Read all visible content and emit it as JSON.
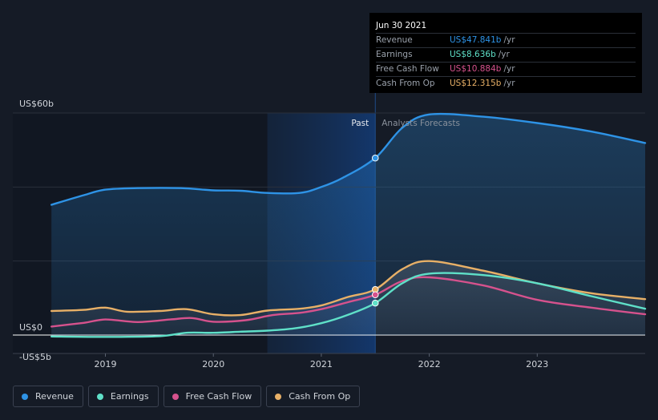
{
  "tooltip": {
    "date": "Jun 30 2021",
    "rows": [
      {
        "label": "Revenue",
        "value": "US$47.841b",
        "unit": "/yr",
        "color": "#2e93e6"
      },
      {
        "label": "Earnings",
        "value": "US$8.636b",
        "unit": "/yr",
        "color": "#5fe0c8"
      },
      {
        "label": "Free Cash Flow",
        "value": "US$10.884b",
        "unit": "/yr",
        "color": "#d6528d"
      },
      {
        "label": "Cash From Op",
        "value": "US$12.315b",
        "unit": "/yr",
        "color": "#e8b067"
      }
    ]
  },
  "legend": [
    {
      "label": "Revenue",
      "color": "#2e93e6"
    },
    {
      "label": "Earnings",
      "color": "#5fe0c8"
    },
    {
      "label": "Free Cash Flow",
      "color": "#d6528d"
    },
    {
      "label": "Cash From Op",
      "color": "#e8b067"
    }
  ],
  "chart_data": {
    "type": "line",
    "ylim": [
      -5,
      60
    ],
    "xlim": [
      2018.38,
      2024.0
    ],
    "y_tick_labels": [
      {
        "value": 60,
        "label": "US$60b"
      },
      {
        "value": 0,
        "label": "US$0"
      },
      {
        "value": -5,
        "label": "-US$5b"
      }
    ],
    "x_ticks": [
      2019,
      2020,
      2021,
      2022,
      2023
    ],
    "x_tick_labels": [
      "2019",
      "2020",
      "2021",
      "2022",
      "2023"
    ],
    "past_label": "Past",
    "forecast_label": "Analysts Forecasts",
    "past_end": 2021.5,
    "highlight_start": 2020.5,
    "series": [
      {
        "name": "Revenue",
        "color": "#2e93e6",
        "points": [
          [
            2018.5,
            35.2
          ],
          [
            2018.8,
            37.8
          ],
          [
            2019.0,
            39.3
          ],
          [
            2019.3,
            39.7
          ],
          [
            2019.7,
            39.7
          ],
          [
            2020.0,
            39.1
          ],
          [
            2020.25,
            39.0
          ],
          [
            2020.5,
            38.4
          ],
          [
            2020.8,
            38.4
          ],
          [
            2021.0,
            40.0
          ],
          [
            2021.2,
            42.5
          ],
          [
            2021.5,
            47.841
          ],
          [
            2021.75,
            56.0
          ],
          [
            2022.0,
            59.6
          ],
          [
            2022.5,
            59.0
          ],
          [
            2023.0,
            57.3
          ],
          [
            2023.5,
            55.0
          ],
          [
            2024.0,
            51.9
          ]
        ]
      },
      {
        "name": "Earnings",
        "color": "#5fe0c8",
        "points": [
          [
            2018.5,
            -0.4
          ],
          [
            2019.0,
            -0.5
          ],
          [
            2019.5,
            -0.3
          ],
          [
            2019.75,
            0.6
          ],
          [
            2020.0,
            0.6
          ],
          [
            2020.25,
            0.9
          ],
          [
            2020.5,
            1.2
          ],
          [
            2020.75,
            1.8
          ],
          [
            2021.0,
            3.2
          ],
          [
            2021.25,
            5.5
          ],
          [
            2021.5,
            8.636
          ],
          [
            2021.75,
            14.0
          ],
          [
            2022.0,
            16.6
          ],
          [
            2022.5,
            16.2
          ],
          [
            2023.0,
            14.0
          ],
          [
            2023.5,
            10.5
          ],
          [
            2024.0,
            7.1
          ]
        ]
      },
      {
        "name": "Free Cash Flow",
        "color": "#d6528d",
        "points": [
          [
            2018.5,
            2.3
          ],
          [
            2018.8,
            3.3
          ],
          [
            2019.0,
            4.2
          ],
          [
            2019.3,
            3.5
          ],
          [
            2019.6,
            4.2
          ],
          [
            2019.8,
            4.6
          ],
          [
            2020.0,
            3.6
          ],
          [
            2020.3,
            4.0
          ],
          [
            2020.55,
            5.4
          ],
          [
            2020.8,
            6.0
          ],
          [
            2021.0,
            7.0
          ],
          [
            2021.25,
            8.9
          ],
          [
            2021.5,
            10.884
          ],
          [
            2021.75,
            14.6
          ],
          [
            2022.0,
            15.6
          ],
          [
            2022.5,
            13.4
          ],
          [
            2023.0,
            9.5
          ],
          [
            2023.5,
            7.4
          ],
          [
            2024.0,
            5.6
          ]
        ]
      },
      {
        "name": "Cash From Op",
        "color": "#e8b067",
        "points": [
          [
            2018.5,
            6.5
          ],
          [
            2018.8,
            6.8
          ],
          [
            2019.0,
            7.4
          ],
          [
            2019.2,
            6.3
          ],
          [
            2019.5,
            6.5
          ],
          [
            2019.75,
            7.0
          ],
          [
            2020.0,
            5.6
          ],
          [
            2020.25,
            5.4
          ],
          [
            2020.5,
            6.6
          ],
          [
            2020.8,
            7.1
          ],
          [
            2021.0,
            8.0
          ],
          [
            2021.25,
            10.3
          ],
          [
            2021.5,
            12.315
          ],
          [
            2021.75,
            17.8
          ],
          [
            2022.0,
            20.0
          ],
          [
            2022.5,
            17.4
          ],
          [
            2023.0,
            14.0
          ],
          [
            2023.5,
            11.3
          ],
          [
            2024.0,
            9.7
          ]
        ]
      }
    ]
  }
}
